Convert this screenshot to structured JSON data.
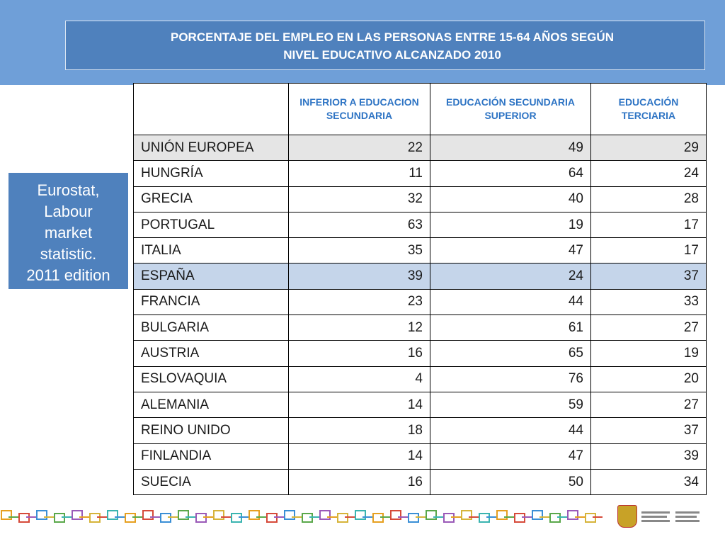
{
  "title": {
    "line1": "PORCENTAJE DEL EMPLEO EN LAS PERSONAS ENTRE 15-64 AÑOS SEGÚN",
    "line2": "NIVEL EDUCATIVO ALCANZADO 2010"
  },
  "source": {
    "lines": [
      "Eurostat,",
      "Labour",
      "market",
      "statistic.",
      "2011 edition"
    ]
  },
  "table": {
    "headers": [
      "",
      "INFERIOR A EDUCACION SECUNDARIA",
      "EDUCACIÓN SECUNDARIA SUPERIOR",
      "EDUCACIÓN TERCIARIA"
    ],
    "rows": [
      {
        "country": "UNIÓN EUROPEA",
        "inferior": "22",
        "secundaria": "49",
        "terciaria": "29",
        "highlight": "eu"
      },
      {
        "country": "HUNGRÍA",
        "inferior": "11",
        "secundaria": "64",
        "terciaria": "24",
        "highlight": ""
      },
      {
        "country": "GRECIA",
        "inferior": "32",
        "secundaria": "40",
        "terciaria": "28",
        "highlight": ""
      },
      {
        "country": "PORTUGAL",
        "inferior": "63",
        "secundaria": "19",
        "terciaria": "17",
        "highlight": ""
      },
      {
        "country": "ITALIA",
        "inferior": "35",
        "secundaria": "47",
        "terciaria": "17",
        "highlight": ""
      },
      {
        "country": "ESPAÑA",
        "inferior": "39",
        "secundaria": "24",
        "terciaria": "37",
        "highlight": "es"
      },
      {
        "country": "FRANCIA",
        "inferior": "23",
        "secundaria": "44",
        "terciaria": "33",
        "highlight": ""
      },
      {
        "country": "BULGARIA",
        "inferior": "12",
        "secundaria": "61",
        "terciaria": "27",
        "highlight": ""
      },
      {
        "country": "AUSTRIA",
        "inferior": "16",
        "secundaria": "65",
        "terciaria": "19",
        "highlight": ""
      },
      {
        "country": "ESLOVAQUIA",
        "inferior": "4",
        "secundaria": "76",
        "terciaria": "20",
        "highlight": ""
      },
      {
        "country": "ALEMANIA",
        "inferior": "14",
        "secundaria": "59",
        "terciaria": "27",
        "highlight": ""
      },
      {
        "country": "REINO UNIDO",
        "inferior": "18",
        "secundaria": "44",
        "terciaria": "37",
        "highlight": ""
      },
      {
        "country": "FINLANDIA",
        "inferior": "14",
        "secundaria": "47",
        "terciaria": "39",
        "highlight": ""
      },
      {
        "country": "SUECIA",
        "inferior": "16",
        "secundaria": "50",
        "terciaria": "34",
        "highlight": ""
      }
    ]
  },
  "colors": {
    "band": "#6f9fd8",
    "title_box": "#4f81bd",
    "header_text": "#2e74c4",
    "eu_row": "#e5e5e5",
    "spain_row": "#c5d5ea"
  },
  "footer": {
    "logo_icon": "gobierno-de-espana-logo-icon",
    "pattern_icon": "chain-pattern-icon"
  }
}
